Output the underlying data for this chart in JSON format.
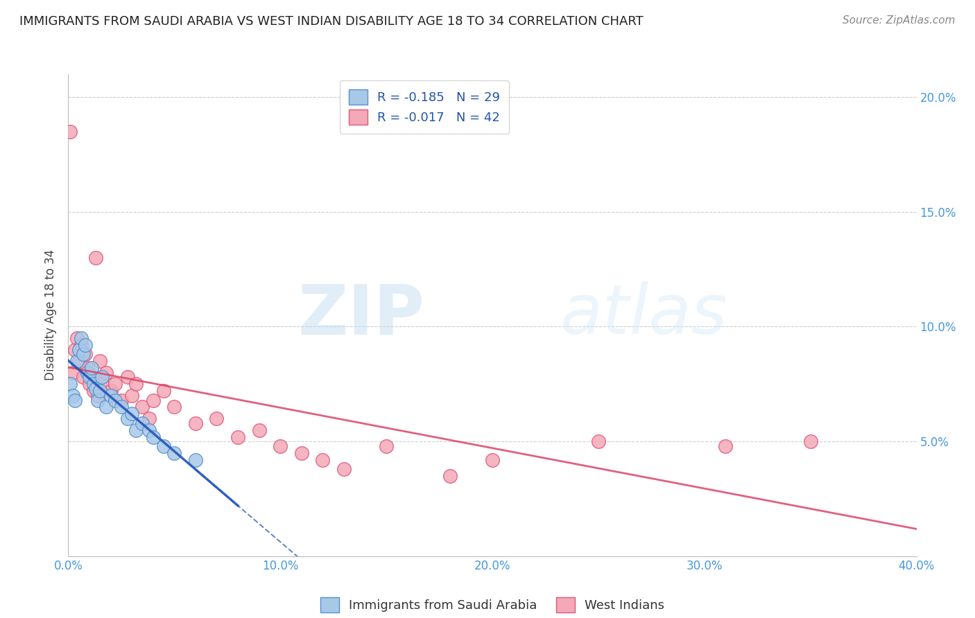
{
  "title": "IMMIGRANTS FROM SAUDI ARABIA VS WEST INDIAN DISABILITY AGE 18 TO 34 CORRELATION CHART",
  "source": "Source: ZipAtlas.com",
  "ylabel": "Disability Age 18 to 34",
  "xlim": [
    0.0,
    0.4
  ],
  "ylim": [
    0.0,
    0.21
  ],
  "xticks": [
    0.0,
    0.1,
    0.2,
    0.3,
    0.4
  ],
  "yticks": [
    0.05,
    0.1,
    0.15,
    0.2
  ],
  "xtick_labels": [
    "0.0%",
    "10.0%",
    "20.0%",
    "30.0%",
    "40.0%"
  ],
  "ytick_labels": [
    "5.0%",
    "10.0%",
    "15.0%",
    "20.0%"
  ],
  "saudi_color": "#a8c8e8",
  "west_indian_color": "#f4a8b8",
  "saudi_edge_color": "#5590cc",
  "west_indian_edge_color": "#e05878",
  "trend_saudi_color": "#2255bb",
  "trend_west_color": "#dd4466",
  "R_saudi": -0.185,
  "N_saudi": 29,
  "R_west": -0.017,
  "N_west": 42,
  "legend_label_saudi": "Immigrants from Saudi Arabia",
  "legend_label_west": "West Indians",
  "watermark_zip": "ZIP",
  "watermark_atlas": "atlas",
  "background_color": "#ffffff",
  "grid_color": "#cccccc",
  "axis_color": "#4499dd",
  "saudi_points_x": [
    0.001,
    0.002,
    0.003,
    0.004,
    0.005,
    0.006,
    0.007,
    0.008,
    0.009,
    0.01,
    0.011,
    0.012,
    0.013,
    0.014,
    0.015,
    0.016,
    0.018,
    0.02,
    0.022,
    0.025,
    0.028,
    0.03,
    0.032,
    0.035,
    0.038,
    0.04,
    0.045,
    0.05,
    0.06
  ],
  "saudi_points_y": [
    0.075,
    0.07,
    0.068,
    0.085,
    0.09,
    0.095,
    0.088,
    0.092,
    0.08,
    0.078,
    0.082,
    0.075,
    0.073,
    0.068,
    0.072,
    0.078,
    0.065,
    0.07,
    0.068,
    0.065,
    0.06,
    0.062,
    0.055,
    0.058,
    0.055,
    0.052,
    0.048,
    0.045,
    0.042
  ],
  "west_points_x": [
    0.001,
    0.002,
    0.003,
    0.004,
    0.005,
    0.006,
    0.007,
    0.008,
    0.009,
    0.01,
    0.011,
    0.012,
    0.013,
    0.014,
    0.015,
    0.016,
    0.018,
    0.02,
    0.022,
    0.025,
    0.028,
    0.03,
    0.032,
    0.035,
    0.038,
    0.04,
    0.045,
    0.05,
    0.06,
    0.07,
    0.08,
    0.09,
    0.1,
    0.11,
    0.12,
    0.13,
    0.15,
    0.18,
    0.2,
    0.25,
    0.31,
    0.35
  ],
  "west_points_y": [
    0.185,
    0.08,
    0.09,
    0.095,
    0.085,
    0.092,
    0.078,
    0.088,
    0.082,
    0.075,
    0.078,
    0.072,
    0.13,
    0.07,
    0.085,
    0.075,
    0.08,
    0.072,
    0.075,
    0.068,
    0.078,
    0.07,
    0.075,
    0.065,
    0.06,
    0.068,
    0.072,
    0.065,
    0.058,
    0.06,
    0.052,
    0.055,
    0.048,
    0.045,
    0.042,
    0.038,
    0.048,
    0.035,
    0.042,
    0.05,
    0.048,
    0.05
  ]
}
